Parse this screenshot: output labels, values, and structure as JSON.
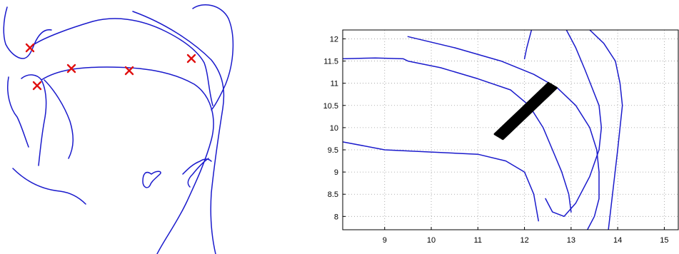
{
  "left_panel": {
    "markers": 5
  },
  "chart_data": {
    "type": "line",
    "title": "",
    "xlabel": "",
    "ylabel": "",
    "xlim": [
      8.1,
      15.3
    ],
    "ylim": [
      7.7,
      12.2
    ],
    "xticks": [
      "9",
      "10",
      "11",
      "12",
      "13",
      "14",
      "15"
    ],
    "yticks": [
      "8",
      "8.5",
      "9",
      "9.5",
      "10",
      "10.5",
      "11",
      "11.5",
      "12"
    ],
    "grid": true,
    "colors": {
      "contour": "#1a1acc",
      "trajectory": "#000000",
      "marker": "#e01010"
    },
    "series": [
      {
        "style": "contour",
        "x": [
          9.5,
          10.5,
          11.5,
          12.2,
          12.7,
          13.1,
          13.4,
          13.55,
          13.6,
          13.6,
          13.5,
          13.35
        ],
        "y": [
          12.05,
          11.8,
          11.5,
          11.2,
          10.9,
          10.5,
          10.0,
          9.5,
          9.0,
          8.4,
          8.0,
          7.7
        ]
      },
      {
        "style": "contour",
        "x": [
          8.1,
          8.8,
          9.4,
          9.5,
          10.2,
          11.0,
          11.7,
          12.1,
          12.4,
          12.6,
          12.8,
          12.95,
          13.0
        ],
        "y": [
          11.55,
          11.57,
          11.55,
          11.5,
          11.35,
          11.1,
          10.85,
          10.5,
          10.0,
          9.5,
          9.0,
          8.5,
          8.1
        ]
      },
      {
        "style": "contour",
        "x": [
          8.1,
          9.0,
          10.0,
          11.0,
          11.6,
          12.0,
          12.2,
          12.3
        ],
        "y": [
          9.68,
          9.5,
          9.45,
          9.4,
          9.25,
          9.0,
          8.5,
          7.9
        ]
      },
      {
        "style": "contour",
        "x": [
          12.9,
          13.1,
          13.3,
          13.45,
          13.6,
          13.65,
          13.6,
          13.4,
          13.1,
          12.85,
          12.6,
          12.45
        ],
        "y": [
          12.2,
          11.8,
          11.3,
          10.9,
          10.5,
          10.0,
          9.5,
          8.9,
          8.3,
          8.0,
          8.1,
          8.4
        ]
      },
      {
        "style": "contour",
        "x": [
          13.4,
          13.7,
          13.95,
          14.05,
          14.1,
          14.05,
          14.0,
          13.9,
          13.8
        ],
        "y": [
          12.2,
          11.9,
          11.5,
          11.0,
          10.5,
          10.0,
          9.5,
          8.6,
          7.7
        ]
      },
      {
        "style": "contour",
        "x": [
          12.15,
          12.1,
          12.05,
          12.0
        ],
        "y": [
          12.2,
          12.0,
          11.8,
          11.55
        ]
      },
      {
        "style": "trajectory",
        "x": [
          11.45,
          11.6,
          11.8,
          12.0,
          12.2,
          12.4,
          12.6
        ],
        "y": [
          9.8,
          9.95,
          10.15,
          10.35,
          10.55,
          10.75,
          10.95
        ]
      }
    ]
  }
}
